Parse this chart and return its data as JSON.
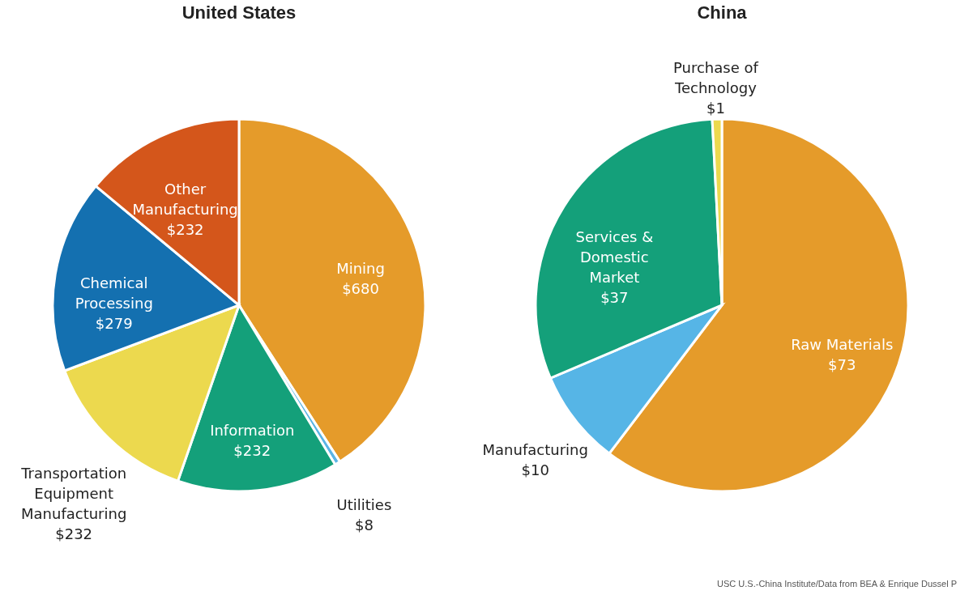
{
  "chart_data": [
    {
      "type": "pie",
      "title": "United States",
      "categories": [
        "Mining",
        "Utilities",
        "Information",
        "Transportation Equipment Manufacturing",
        "Chemical Processing",
        "Other Manufacturing"
      ],
      "values": [
        680,
        8,
        232,
        232,
        279,
        232
      ],
      "value_labels": [
        "$680",
        "$8",
        "$232",
        "$232",
        "$279",
        "$232"
      ],
      "colors": [
        "#e59b2a",
        "#5ab4e5",
        "#14a07a",
        "#ecd94e",
        "#1470b0",
        "#d4561b"
      ],
      "legend": false
    },
    {
      "type": "pie",
      "title": "China",
      "categories": [
        "Raw Materials",
        "Manufacturing",
        "Services & Domestic Market",
        "Purchase of Technology"
      ],
      "values": [
        73,
        10,
        37,
        1
      ],
      "value_labels": [
        "$73",
        "$10",
        "$37",
        "$1"
      ],
      "colors": [
        "#e59b2a",
        "#56b5e6",
        "#14a07a",
        "#ecd94e"
      ],
      "legend": false,
      "annotations": [
        "USC U.S.-China Institute/Data from BEA & Enrique Dussel P"
      ]
    }
  ]
}
